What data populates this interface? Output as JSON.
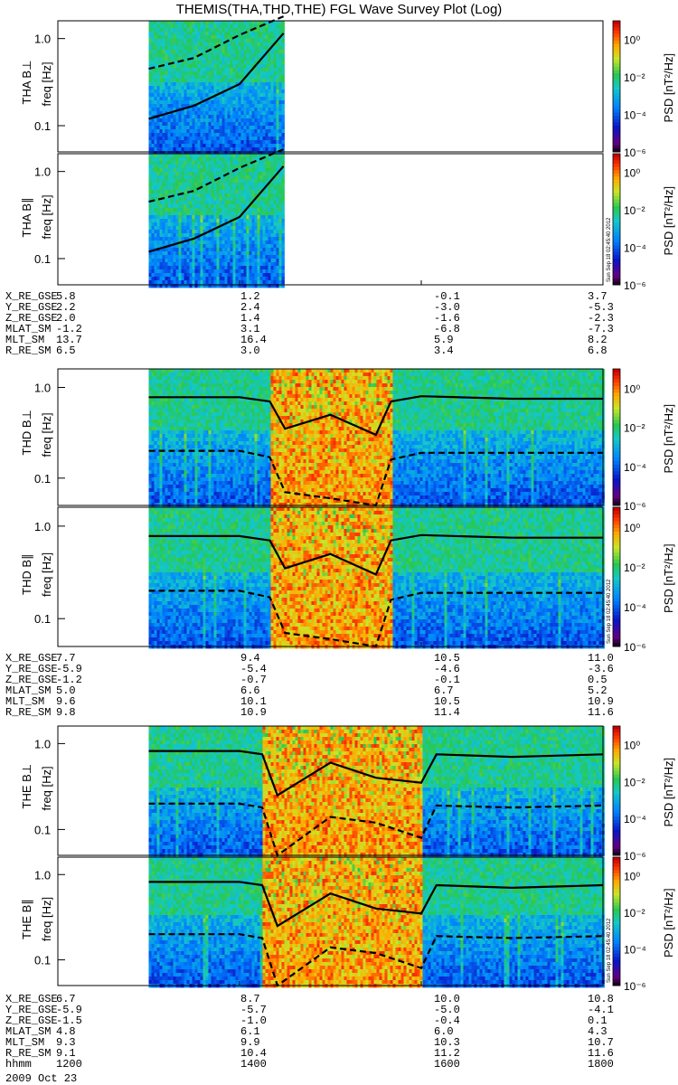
{
  "chart_data": {
    "type": "heatmap",
    "title": "THEMIS(THA,THD,THE) FGL Wave Survey Plot (Log)",
    "x_axis": {
      "type": "time",
      "range": [
        "1200",
        "1800"
      ],
      "ticks": [
        "1200",
        "1400",
        "1600",
        "1800"
      ],
      "label": "hhmm",
      "date": "2009 Oct 23"
    },
    "y_axis": {
      "label": "freq [Hz]",
      "scale": "log",
      "range": [
        0.05,
        1.6
      ],
      "ticks": [
        "0.1",
        "1.0"
      ]
    },
    "colorbar": {
      "label": "PSD [nT²/Hz]",
      "scale": "log",
      "range": [
        1e-06,
        10
      ],
      "ticks": [
        "10⁰",
        "10⁻²",
        "10⁻⁴",
        "10⁻⁶"
      ],
      "tick_values": [
        1,
        0.01,
        0.0001,
        1e-06
      ]
    },
    "timestamp_label": "Sun Sep 18 02:45:40 2012",
    "panels": [
      {
        "probe": "THA",
        "component": "THA B⊥",
        "data_range": [
          "1300",
          "1429"
        ],
        "activity": "low",
        "contour_solid": [
          [
            1300,
            0.12
          ],
          [
            1330,
            0.17
          ],
          [
            1400,
            0.3
          ],
          [
            1429,
            1.15
          ]
        ],
        "contour_dashed": [
          [
            1300,
            0.45
          ],
          [
            1330,
            0.6
          ],
          [
            1400,
            1.1
          ],
          [
            1429,
            1.8
          ]
        ]
      },
      {
        "probe": "THA",
        "component": "THA B∥",
        "data_range": [
          "1300",
          "1429"
        ],
        "activity": "low",
        "contour_solid": [
          [
            1300,
            0.12
          ],
          [
            1330,
            0.17
          ],
          [
            1400,
            0.3
          ],
          [
            1429,
            1.15
          ]
        ],
        "contour_dashed": [
          [
            1300,
            0.45
          ],
          [
            1330,
            0.6
          ],
          [
            1400,
            1.1
          ],
          [
            1429,
            1.8
          ]
        ]
      },
      {
        "probe": "THD",
        "component": "THD B⊥",
        "data_range": [
          "1300",
          "1800"
        ],
        "active_interval": [
          "1420",
          "1540"
        ],
        "contour_solid": [
          [
            1300,
            0.78
          ],
          [
            1400,
            0.78
          ],
          [
            1420,
            0.7
          ],
          [
            1430,
            0.35
          ],
          [
            1500,
            0.5
          ],
          [
            1530,
            0.3
          ],
          [
            1540,
            0.7
          ],
          [
            1600,
            0.8
          ],
          [
            1700,
            0.75
          ],
          [
            1800,
            0.75
          ]
        ],
        "contour_dashed": [
          [
            1300,
            0.2
          ],
          [
            1400,
            0.2
          ],
          [
            1420,
            0.17
          ],
          [
            1430,
            0.07
          ],
          [
            1500,
            0.06
          ],
          [
            1530,
            0.05
          ],
          [
            1540,
            0.16
          ],
          [
            1600,
            0.19
          ],
          [
            1700,
            0.19
          ],
          [
            1800,
            0.19
          ]
        ]
      },
      {
        "probe": "THD",
        "component": "THD B∥",
        "data_range": [
          "1300",
          "1800"
        ],
        "active_interval": [
          "1420",
          "1540"
        ],
        "contour_solid": [
          [
            1300,
            0.78
          ],
          [
            1400,
            0.78
          ],
          [
            1420,
            0.7
          ],
          [
            1430,
            0.35
          ],
          [
            1500,
            0.5
          ],
          [
            1530,
            0.3
          ],
          [
            1540,
            0.7
          ],
          [
            1600,
            0.8
          ],
          [
            1700,
            0.75
          ],
          [
            1800,
            0.75
          ]
        ],
        "contour_dashed": [
          [
            1300,
            0.2
          ],
          [
            1400,
            0.2
          ],
          [
            1420,
            0.17
          ],
          [
            1430,
            0.07
          ],
          [
            1500,
            0.06
          ],
          [
            1530,
            0.05
          ],
          [
            1540,
            0.16
          ],
          [
            1600,
            0.19
          ],
          [
            1700,
            0.19
          ],
          [
            1800,
            0.19
          ]
        ]
      },
      {
        "probe": "THE",
        "component": "THE B⊥",
        "data_range": [
          "1300",
          "1800"
        ],
        "active_interval": [
          "1415",
          "1600"
        ],
        "contour_solid": [
          [
            1300,
            0.82
          ],
          [
            1400,
            0.82
          ],
          [
            1415,
            0.75
          ],
          [
            1425,
            0.25
          ],
          [
            1500,
            0.6
          ],
          [
            1530,
            0.4
          ],
          [
            1600,
            0.35
          ],
          [
            1610,
            0.75
          ],
          [
            1700,
            0.7
          ],
          [
            1800,
            0.75
          ]
        ],
        "contour_dashed": [
          [
            1300,
            0.2
          ],
          [
            1400,
            0.2
          ],
          [
            1415,
            0.18
          ],
          [
            1425,
            0.05
          ],
          [
            1500,
            0.14
          ],
          [
            1530,
            0.12
          ],
          [
            1600,
            0.08
          ],
          [
            1610,
            0.19
          ],
          [
            1700,
            0.18
          ],
          [
            1800,
            0.19
          ]
        ]
      },
      {
        "probe": "THE",
        "component": "THE B∥",
        "data_range": [
          "1300",
          "1800"
        ],
        "active_interval": [
          "1415",
          "1600"
        ],
        "contour_solid": [
          [
            1300,
            0.82
          ],
          [
            1400,
            0.82
          ],
          [
            1415,
            0.75
          ],
          [
            1425,
            0.25
          ],
          [
            1500,
            0.6
          ],
          [
            1530,
            0.4
          ],
          [
            1600,
            0.35
          ],
          [
            1610,
            0.75
          ],
          [
            1700,
            0.7
          ],
          [
            1800,
            0.75
          ]
        ],
        "contour_dashed": [
          [
            1300,
            0.2
          ],
          [
            1400,
            0.2
          ],
          [
            1415,
            0.18
          ],
          [
            1425,
            0.05
          ],
          [
            1500,
            0.14
          ],
          [
            1530,
            0.12
          ],
          [
            1600,
            0.08
          ],
          [
            1610,
            0.19
          ],
          [
            1700,
            0.18
          ],
          [
            1800,
            0.19
          ]
        ]
      }
    ],
    "ephemeris": [
      {
        "probe": "THA",
        "rows": [
          {
            "name": "X_RE_GSE",
            "values": [
              "5.8",
              "1.2",
              "-0.1",
              "3.7"
            ]
          },
          {
            "name": "Y_RE_GSE",
            "values": [
              "2.2",
              "2.4",
              "-3.0",
              "-5.3"
            ]
          },
          {
            "name": "Z_RE_GSE",
            "values": [
              "2.0",
              "1.4",
              "-1.6",
              "-2.3"
            ]
          },
          {
            "name": "MLAT_SM",
            "values": [
              "-1.2",
              "3.1",
              "-6.8",
              "-7.3"
            ]
          },
          {
            "name": "MLT_SM",
            "values": [
              "13.7",
              "16.4",
              "5.9",
              "8.2"
            ]
          },
          {
            "name": "R_RE_SM",
            "values": [
              "6.5",
              "3.0",
              "3.4",
              "6.8"
            ]
          }
        ]
      },
      {
        "probe": "THD",
        "rows": [
          {
            "name": "X_RE_GSE",
            "values": [
              "7.7",
              "9.4",
              "10.5",
              "11.0"
            ]
          },
          {
            "name": "Y_RE_GSE",
            "values": [
              "-5.9",
              "-5.4",
              "-4.6",
              "-3.6"
            ]
          },
          {
            "name": "Z_RE_GSE",
            "values": [
              "-1.2",
              "-0.7",
              "-0.1",
              "0.5"
            ]
          },
          {
            "name": "MLAT_SM",
            "values": [
              "5.0",
              "6.6",
              "6.7",
              "5.2"
            ]
          },
          {
            "name": "MLT_SM",
            "values": [
              "9.6",
              "10.1",
              "10.5",
              "10.9"
            ]
          },
          {
            "name": "R_RE_SM",
            "values": [
              "9.8",
              "10.9",
              "11.4",
              "11.6"
            ]
          }
        ]
      },
      {
        "probe": "THE",
        "rows": [
          {
            "name": "X_RE_GSE",
            "values": [
              "6.7",
              "8.7",
              "10.0",
              "10.8"
            ]
          },
          {
            "name": "Y_RE_GSE",
            "values": [
              "-5.9",
              "-5.7",
              "-5.0",
              "-4.1"
            ]
          },
          {
            "name": "Z_RE_GSE",
            "values": [
              "-1.5",
              "-1.0",
              "-0.4",
              "0.1"
            ]
          },
          {
            "name": "MLAT_SM",
            "values": [
              "4.8",
              "6.1",
              "6.0",
              "4.3"
            ]
          },
          {
            "name": "MLT_SM",
            "values": [
              "9.3",
              "9.9",
              "10.3",
              "10.7"
            ]
          },
          {
            "name": "R_RE_SM",
            "values": [
              "9.1",
              "10.4",
              "11.2",
              "11.6"
            ]
          },
          {
            "name": "hhmm",
            "values": [
              "1200",
              "1400",
              "1600",
              "1800"
            ]
          }
        ]
      }
    ]
  }
}
